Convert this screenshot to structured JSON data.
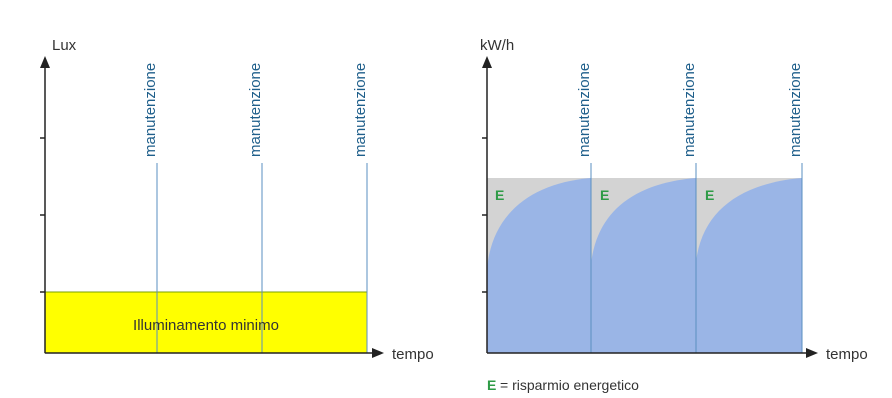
{
  "colors": {
    "axis": "#222222",
    "yellow": "#ffff00",
    "yellow_border": "#7aa000",
    "blue": "#9ab5e6",
    "grey": "#d3d3d3",
    "maintenance_line": "#5a8fc0",
    "maintenance_text": "#1f5f8b",
    "e_green": "#2e9b46"
  },
  "left_chart": {
    "y_label": "Lux",
    "x_label": "tempo",
    "maintenance_labels": [
      "manutenzione",
      "manutenzione",
      "manutenzione"
    ],
    "box_label": "Illuminamento minimo"
  },
  "right_chart": {
    "y_label": "kW/h",
    "x_label": "tempo",
    "maintenance_labels": [
      "manutenzione",
      "manutenzione",
      "manutenzione"
    ],
    "e_labels": [
      "E",
      "E",
      "E"
    ]
  },
  "legend": {
    "symbol": "E",
    "text": "= risparmio energetico"
  }
}
